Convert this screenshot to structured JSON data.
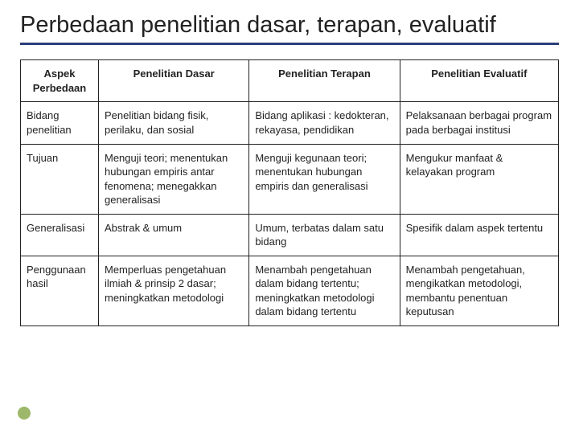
{
  "slide": {
    "title": "Perbedaan penelitian dasar, terapan, evaluatif"
  },
  "table": {
    "columns": [
      "Aspek Perbedaan",
      "Penelitian Dasar",
      "Penelitian Terapan",
      "Penelitian Evaluatif"
    ],
    "rows": [
      {
        "c0": "Bidang penelitian",
        "c1": "Penelitian bidang fisik, perilaku, dan sosial",
        "c2": "Bidang aplikasi : kedokteran, rekayasa, pendidikan",
        "c3": "Pelaksanaan berbagai program pada berbagai institusi"
      },
      {
        "c0": "Tujuan",
        "c1": "Menguji teori; menentukan hubungan empiris antar fenomena; menegakkan generalisasi",
        "c2": "Menguji kegunaan teori; menentukan hubungan empiris dan generalisasi",
        "c3": "Mengukur manfaat & kelayakan program"
      },
      {
        "c0": "Generalisasi",
        "c1": "Abstrak & umum",
        "c2": "Umum, terbatas dalam satu bidang",
        "c3": "Spesifik dalam aspek tertentu"
      },
      {
        "c0": "Penggunaan hasil",
        "c1": "Memperluas pengetahuan ilmiah & prinsip 2 dasar; meningkatkan metodologi",
        "c2": "Menambah pengetahuan dalam bidang tertentu; meningkatkan metodologi dalam bidang tertentu",
        "c3": "Menambah pengetahuan, mengikatkan metodologi, membantu penentuan keputusan"
      }
    ]
  },
  "colors": {
    "title_underline": "#2a3f7a",
    "bullet": "#9db86a",
    "border": "#222222",
    "text": "#222222",
    "background": "#ffffff"
  }
}
